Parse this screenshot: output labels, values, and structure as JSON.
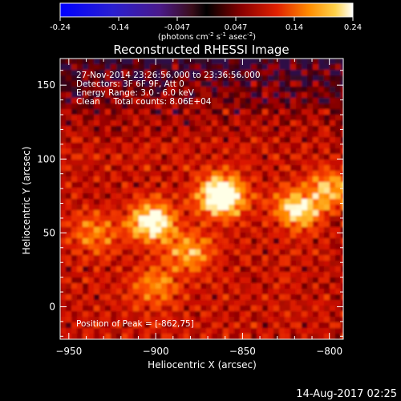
{
  "chart_data": {
    "type": "heatmap",
    "title": "Reconstructed RHESSI Image",
    "colorbar": {
      "ticks": [
        "-0.24",
        "-0.14",
        "-0.047",
        "0.047",
        "0.14",
        "0.24"
      ],
      "unit_parts": [
        "(photons cm",
        "-2",
        " s",
        "-1",
        " asec",
        "-2",
        ")"
      ],
      "range": [
        -0.24,
        0.24
      ],
      "colormap": "RHESSI red-temperature with blue-violet negatives"
    },
    "info_lines": [
      "27-Nov-2014 23:26:56.000 to 23:36:56.000",
      "Detectors: 3F 6F 9F, Att 0",
      "Energy Range: 3.0 - 6.0 keV",
      "Clean     Total counts: 8.06E+04"
    ],
    "peak_label": "Position of Peak = [-862,75]",
    "xlabel": "Heliocentric X (arcsec)",
    "ylabel": "Heliocentric Y (arcsec)",
    "xlim": [
      -955,
      -792
    ],
    "ylim": [
      -22,
      168
    ],
    "xticks": [
      -950,
      -900,
      -850,
      -800
    ],
    "xtick_labels": [
      "−950",
      "−900",
      "−850",
      "−800"
    ],
    "yticks": [
      0,
      50,
      100,
      150
    ],
    "ytick_labels": [
      "0",
      "50",
      "100",
      "150"
    ],
    "sources": [
      {
        "x": -862,
        "y": 75,
        "peak": 1.0
      },
      {
        "x": -902,
        "y": 57,
        "peak": 0.78
      },
      {
        "x": -818,
        "y": 66,
        "peak": 0.66
      },
      {
        "x": -798,
        "y": 80,
        "peak": 0.52
      },
      {
        "x": -880,
        "y": 37,
        "peak": 0.45
      },
      {
        "x": -900,
        "y": 14,
        "peak": 0.38
      },
      {
        "x": -935,
        "y": 50,
        "peak": 0.35
      }
    ],
    "peak_position": [
      -862,
      75
    ],
    "grid": false
  },
  "footer": {
    "date": "14-Aug-2017 02:25"
  }
}
